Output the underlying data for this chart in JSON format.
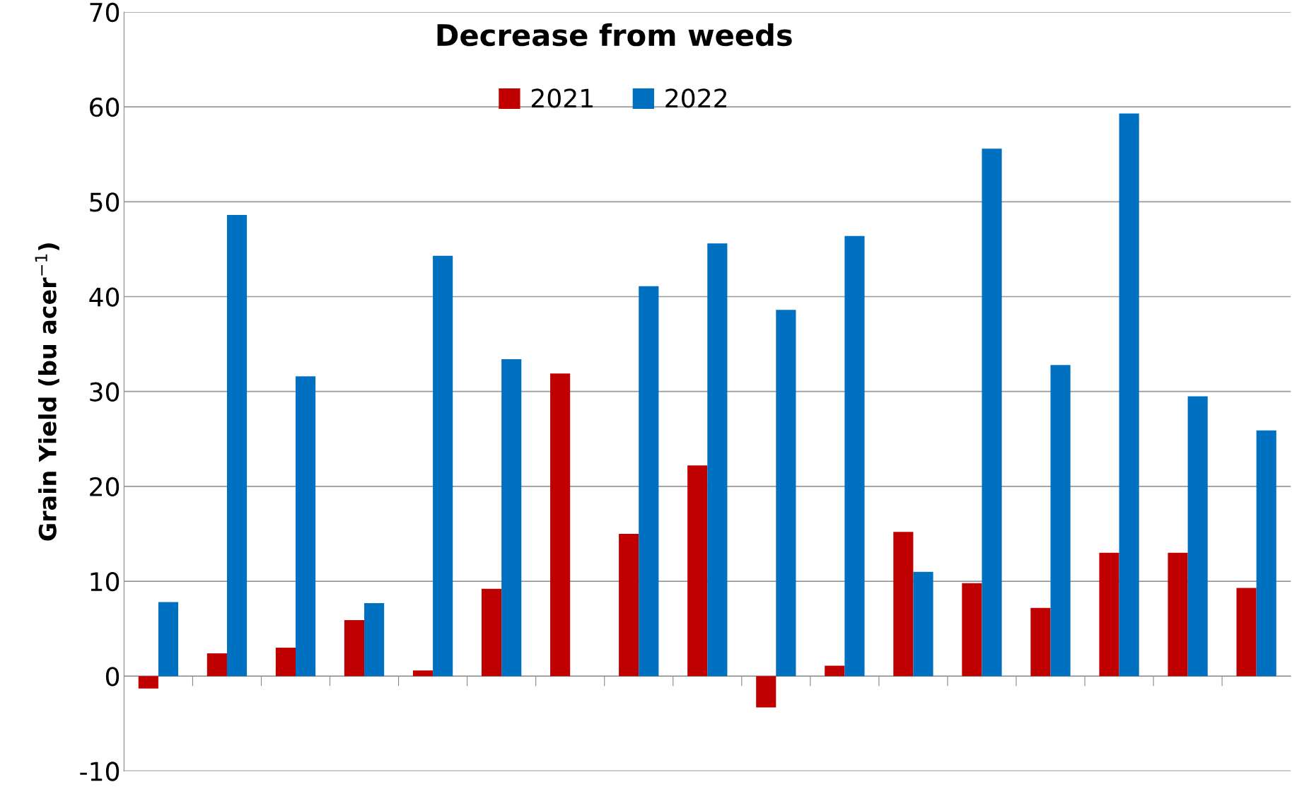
{
  "chart_data": {
    "type": "bar",
    "title": "Decrease from weeds",
    "ylabel": "Grain Yield (bu acer$^{−1}$)",
    "categories": [
      null,
      null,
      null,
      null,
      null,
      null,
      null,
      null,
      null,
      null,
      null,
      null,
      null,
      null,
      null,
      null,
      null
    ],
    "series": [
      {
        "name": "2021",
        "color": "#c00000",
        "values": [
          -1.3,
          2.4,
          3.0,
          5.9,
          0.6,
          9.2,
          31.9,
          15.0,
          22.2,
          -3.3,
          1.1,
          15.2,
          9.8,
          7.2,
          13.0,
          13.0,
          9.3
        ]
      },
      {
        "name": "2022",
        "color": "#0070c0",
        "values": [
          7.8,
          48.6,
          31.6,
          7.7,
          44.3,
          33.4,
          null,
          41.1,
          45.6,
          38.6,
          46.4,
          11.0,
          55.6,
          32.8,
          59.3,
          29.5,
          25.9
        ]
      }
    ],
    "ylim": [
      -10,
      70
    ],
    "yticks": [
      -10,
      0,
      10,
      20,
      30,
      40,
      50,
      60,
      70
    ],
    "grid": "y",
    "legend": "top",
    "tick_labels": "y"
  }
}
